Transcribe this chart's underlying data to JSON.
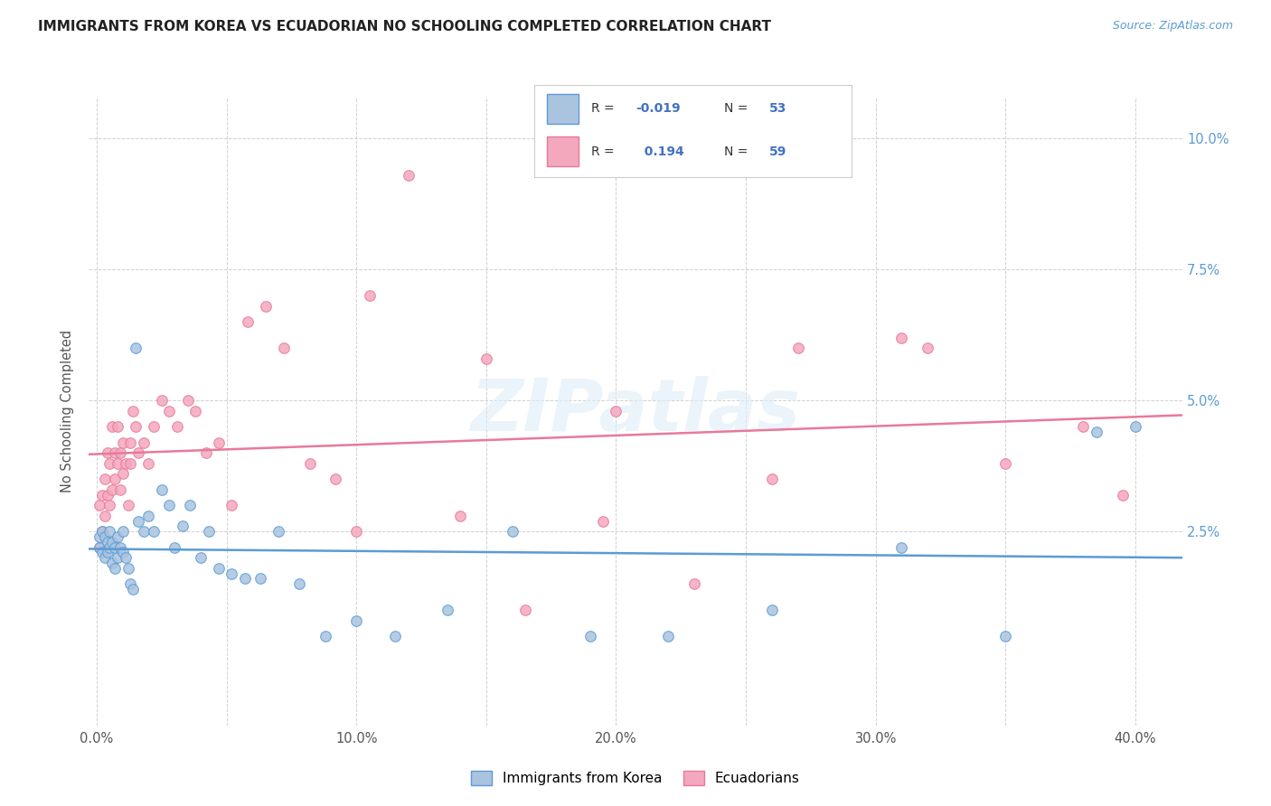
{
  "title": "IMMIGRANTS FROM KOREA VS ECUADORIAN NO SCHOOLING COMPLETED CORRELATION CHART",
  "source": "Source: ZipAtlas.com",
  "xlabel_ticks": [
    "0.0%",
    "",
    "10.0%",
    "",
    "20.0%",
    "",
    "30.0%",
    "",
    "40.0%"
  ],
  "xlabel_tick_vals": [
    0.0,
    0.05,
    0.1,
    0.15,
    0.2,
    0.25,
    0.3,
    0.35,
    0.4
  ],
  "ylabel_ticks": [
    "2.5%",
    "5.0%",
    "7.5%",
    "10.0%"
  ],
  "ylabel_tick_vals": [
    0.025,
    0.05,
    0.075,
    0.1
  ],
  "ylabel": "No Schooling Completed",
  "xmin": -0.003,
  "xmax": 0.418,
  "ymin": -0.012,
  "ymax": 0.108,
  "korea_color": "#aac4e0",
  "ecuador_color": "#f4a8be",
  "korea_line_color": "#5b9bd5",
  "ecuador_line_color": "#e8799a",
  "korea_R": -0.019,
  "korea_N": 53,
  "ecuador_R": 0.194,
  "ecuador_N": 59,
  "legend_label_korea": "Immigrants from Korea",
  "legend_label_ecuador": "Ecuadorians",
  "watermark": "ZIPatlas",
  "korea_x": [
    0.001,
    0.001,
    0.002,
    0.002,
    0.003,
    0.003,
    0.004,
    0.004,
    0.005,
    0.005,
    0.006,
    0.006,
    0.007,
    0.007,
    0.008,
    0.008,
    0.009,
    0.01,
    0.01,
    0.011,
    0.012,
    0.013,
    0.014,
    0.015,
    0.016,
    0.018,
    0.02,
    0.022,
    0.025,
    0.028,
    0.03,
    0.033,
    0.036,
    0.04,
    0.043,
    0.047,
    0.052,
    0.057,
    0.063,
    0.07,
    0.078,
    0.088,
    0.1,
    0.115,
    0.135,
    0.16,
    0.19,
    0.22,
    0.26,
    0.31,
    0.35,
    0.385,
    0.4
  ],
  "korea_y": [
    0.024,
    0.022,
    0.025,
    0.021,
    0.024,
    0.02,
    0.023,
    0.021,
    0.025,
    0.022,
    0.023,
    0.019,
    0.022,
    0.018,
    0.024,
    0.02,
    0.022,
    0.025,
    0.021,
    0.02,
    0.018,
    0.015,
    0.014,
    0.06,
    0.027,
    0.025,
    0.028,
    0.025,
    0.033,
    0.03,
    0.022,
    0.026,
    0.03,
    0.02,
    0.025,
    0.018,
    0.017,
    0.016,
    0.016,
    0.025,
    0.015,
    0.005,
    0.008,
    0.005,
    0.01,
    0.025,
    0.005,
    0.005,
    0.01,
    0.022,
    0.005,
    0.044,
    0.045
  ],
  "ecuador_x": [
    0.001,
    0.001,
    0.002,
    0.002,
    0.003,
    0.003,
    0.004,
    0.004,
    0.005,
    0.005,
    0.006,
    0.006,
    0.007,
    0.007,
    0.008,
    0.008,
    0.009,
    0.009,
    0.01,
    0.01,
    0.011,
    0.012,
    0.013,
    0.013,
    0.014,
    0.015,
    0.016,
    0.018,
    0.02,
    0.022,
    0.025,
    0.028,
    0.031,
    0.035,
    0.038,
    0.042,
    0.047,
    0.052,
    0.058,
    0.065,
    0.072,
    0.082,
    0.092,
    0.105,
    0.12,
    0.14,
    0.165,
    0.195,
    0.23,
    0.27,
    0.31,
    0.35,
    0.38,
    0.395,
    0.1,
    0.15,
    0.2,
    0.26,
    0.32
  ],
  "ecuador_y": [
    0.03,
    0.022,
    0.032,
    0.025,
    0.035,
    0.028,
    0.04,
    0.032,
    0.038,
    0.03,
    0.033,
    0.045,
    0.04,
    0.035,
    0.045,
    0.038,
    0.04,
    0.033,
    0.042,
    0.036,
    0.038,
    0.03,
    0.042,
    0.038,
    0.048,
    0.045,
    0.04,
    0.042,
    0.038,
    0.045,
    0.05,
    0.048,
    0.045,
    0.05,
    0.048,
    0.04,
    0.042,
    0.03,
    0.065,
    0.068,
    0.06,
    0.038,
    0.035,
    0.07,
    0.093,
    0.028,
    0.01,
    0.027,
    0.015,
    0.06,
    0.062,
    0.038,
    0.045,
    0.032,
    0.025,
    0.058,
    0.048,
    0.035,
    0.06
  ]
}
